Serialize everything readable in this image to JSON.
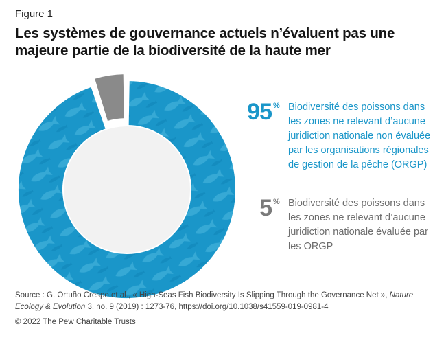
{
  "figure_label": "Figure 1",
  "title": "Les systèmes de gouvernance actuels n’évaluent pas une majeure partie de la biodiversité de la haute mer",
  "chart_data": {
    "type": "pie",
    "variant": "donut",
    "categories": [
      "Biodiversité des poissons dans les zones ne relevant d’aucune juridiction nationale non évaluée par les organisations régionales de gestion de la pêche (ORGP)",
      "Biodiversité des poissons dans les zones ne relevant d’aucune juridiction nationale évaluée par les ORGP"
    ],
    "values": [
      95,
      5
    ],
    "unit": "%",
    "colors": [
      "#1a96c9",
      "#8a8a8a"
    ],
    "exploded_slice": 1,
    "legend_position": "right"
  },
  "legend": [
    {
      "value": "95",
      "unit": "%",
      "text": "Biodiversité des poissons dans les zones ne relevant d’aucune juridiction nationale non évaluée par les organisations régionales de gestion de la pêche (ORGP)"
    },
    {
      "value": "5",
      "unit": "%",
      "text": "Biodiversité des poissons dans les zones ne relevant d’aucune juridiction nationale évaluée par les ORGP"
    }
  ],
  "source": {
    "prefix": "Source : G. Ortuño Crespo et al., « High-Seas Fish Biodiversity Is Slipping Through the Governance Net », ",
    "journal": "Nature Ecology & Evolution",
    "suffix": " 3, no. 9 (2019) : 1273-76, https://doi.org/10.1038/s41559-019-0981-4"
  },
  "copyright": "© 2022 The Pew Charitable Trusts"
}
